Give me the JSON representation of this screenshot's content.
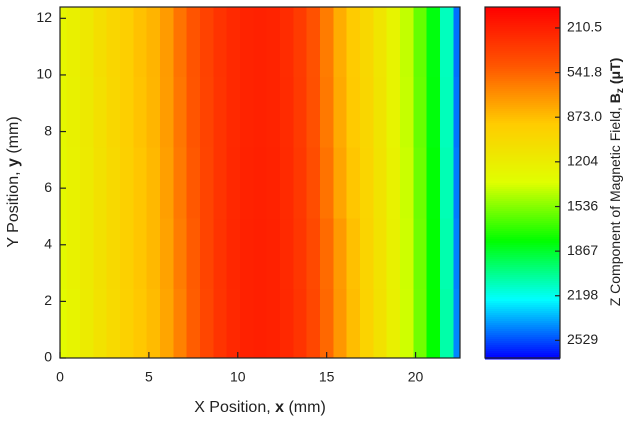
{
  "chart_data": {
    "type": "heatmap",
    "xlabel": [
      "X Position, ",
      "x",
      " (mm)"
    ],
    "ylabel": [
      "Y Position, ",
      "y",
      " (mm)"
    ],
    "colorbar_label": [
      "Z Component of Magnetic Field, ",
      "B",
      "z",
      " (μT)"
    ],
    "x": [
      0,
      0.75,
      1.5,
      2.25,
      3,
      3.75,
      4.5,
      5.25,
      6,
      6.75,
      7.5,
      8.25,
      9,
      9.75,
      10.5,
      11.25,
      12,
      12.75,
      13.5,
      14.25,
      15,
      15.75,
      16.5,
      17.25,
      18,
      18.75,
      19.5,
      20.25,
      21,
      21.75,
      22.5
    ],
    "y": [
      1.2,
      3.7,
      6.2,
      8.7,
      11.2
    ],
    "z": [
      [
        1320,
        1260,
        1190,
        1110,
        1040,
        970,
        910,
        860,
        780,
        650,
        520,
        410,
        320,
        260,
        225,
        215,
        225,
        260,
        320,
        420,
        560,
        730,
        870,
        980,
        1100,
        1230,
        1390,
        1570,
        1790,
        2080,
        2430
      ],
      [
        1310,
        1250,
        1180,
        1100,
        1030,
        960,
        900,
        850,
        770,
        630,
        510,
        400,
        315,
        255,
        225,
        215,
        225,
        262,
        330,
        430,
        570,
        740,
        880,
        990,
        1110,
        1240,
        1395,
        1575,
        1795,
        2090,
        2440
      ],
      [
        1300,
        1250,
        1180,
        1100,
        1030,
        960,
        900,
        850,
        760,
        620,
        500,
        400,
        320,
        260,
        230,
        220,
        230,
        270,
        340,
        450,
        600,
        780,
        900,
        1000,
        1120,
        1250,
        1400,
        1580,
        1800,
        2100,
        2450
      ],
      [
        1290,
        1240,
        1170,
        1090,
        1020,
        950,
        890,
        840,
        750,
        610,
        490,
        395,
        320,
        262,
        232,
        222,
        234,
        275,
        350,
        465,
        620,
        800,
        915,
        1010,
        1130,
        1260,
        1410,
        1590,
        1810,
        2110,
        2460
      ],
      [
        1280,
        1230,
        1160,
        1080,
        1010,
        945,
        885,
        835,
        745,
        600,
        485,
        390,
        318,
        262,
        233,
        224,
        236,
        280,
        355,
        470,
        630,
        810,
        920,
        1015,
        1135,
        1265,
        1415,
        1595,
        1815,
        2115,
        2470
      ]
    ],
    "xlim": [
      0,
      22.5
    ],
    "xticks": [
      0,
      5,
      10,
      15,
      20
    ],
    "ylim": [
      0,
      12.4
    ],
    "yticks": [
      0,
      2,
      4,
      6,
      8,
      10,
      12
    ],
    "colorbar_lim": [
      55,
      2660
    ],
    "colorbar_ticks": [
      210.5,
      541.8,
      {
        "value": 873,
        "label": "873.0"
      },
      1204,
      1536,
      1867,
      2198,
      2529
    ],
    "colormap": [
      "#ff0000",
      "#ff5500",
      "#ffcc00",
      "#e0ff00",
      "#00ff00",
      "#00ffff",
      "#0000ff"
    ]
  }
}
